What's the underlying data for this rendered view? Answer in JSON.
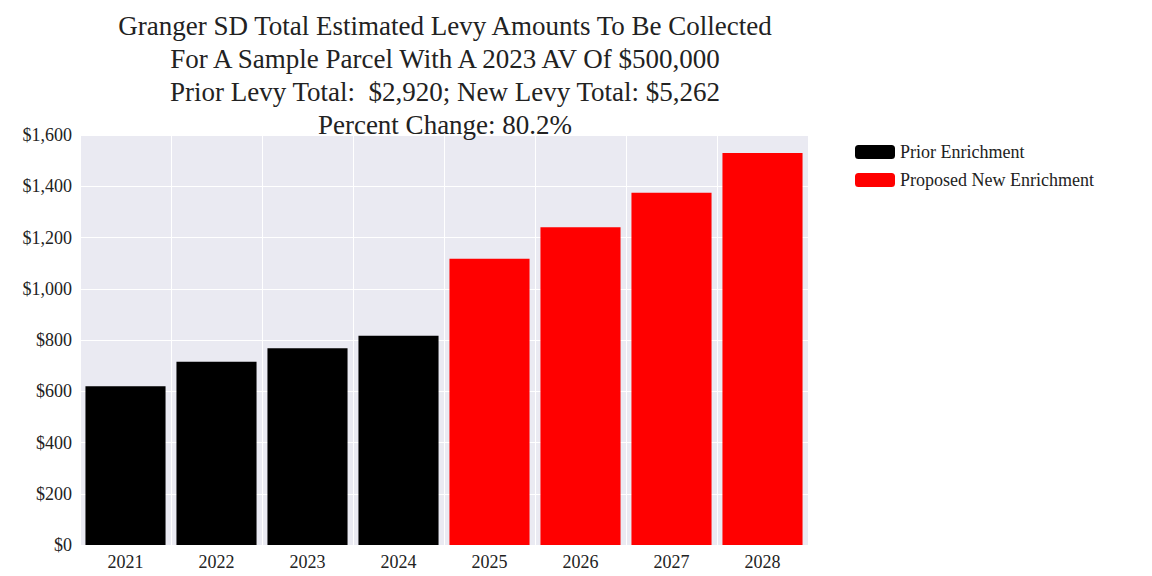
{
  "chart_data": {
    "type": "bar",
    "title": "Granger SD Total Estimated Levy Amounts To Be Collected\nFor A Sample Parcel With A 2023 AV Of $500,000\nPrior Levy Total:  $2,920; New Levy Total: $5,262\nPercent Change: 80.2%",
    "categories": [
      "2021",
      "2022",
      "2023",
      "2024",
      "2025",
      "2026",
      "2027",
      "2028"
    ],
    "series": [
      {
        "name": "Prior Enrichment",
        "color": "#000000",
        "values": [
          620,
          715,
          768,
          817,
          null,
          null,
          null,
          null
        ]
      },
      {
        "name": "Proposed New Enrichment",
        "color": "#ff0000",
        "values": [
          null,
          null,
          null,
          null,
          1117,
          1240,
          1375,
          1530
        ]
      }
    ],
    "stacked": true,
    "ylim": [
      0,
      1600
    ],
    "yticks": [
      {
        "value": 0,
        "label": "$0"
      },
      {
        "value": 200,
        "label": "$200"
      },
      {
        "value": 400,
        "label": "$400"
      },
      {
        "value": 600,
        "label": "$600"
      },
      {
        "value": 800,
        "label": "$800"
      },
      {
        "value": 1000,
        "label": "$1,000"
      },
      {
        "value": 1200,
        "label": "$1,200"
      },
      {
        "value": 1400,
        "label": "$1,400"
      },
      {
        "value": 1600,
        "label": "$1,600"
      }
    ],
    "grid": true,
    "legend": "upper right"
  }
}
